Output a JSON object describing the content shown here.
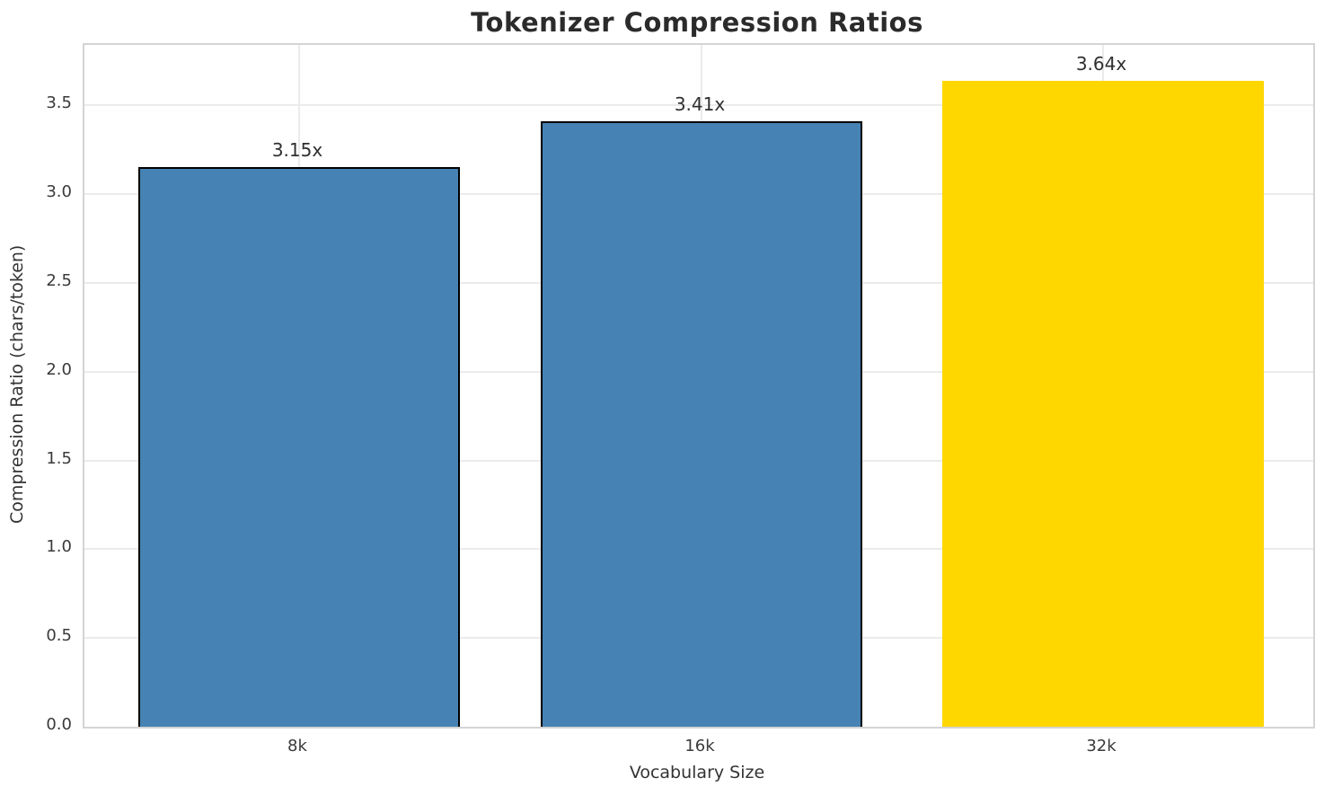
{
  "chart_data": {
    "type": "bar",
    "title": "Tokenizer Compression Ratios",
    "xlabel": "Vocabulary Size",
    "ylabel": "Compression Ratio (chars/token)",
    "categories": [
      "8k",
      "16k",
      "32k"
    ],
    "values": [
      3.15,
      3.41,
      3.64
    ],
    "bar_labels": [
      "3.15x",
      "3.41x",
      "3.64x"
    ],
    "bar_colors": [
      "#4682B4",
      "#4682B4",
      "#FFD700"
    ],
    "bar_edge_colors": [
      "#000000",
      "#000000",
      "transparent"
    ],
    "ylim": [
      0,
      3.84
    ],
    "yticks": [
      0.0,
      0.5,
      1.0,
      1.5,
      2.0,
      2.5,
      3.0,
      3.5
    ],
    "ytick_labels": [
      "0.0",
      "0.5",
      "1.0",
      "1.5",
      "2.0",
      "2.5",
      "3.0",
      "3.5"
    ],
    "grid": "both",
    "grid_color": "#ebebeb",
    "spine_color": "#d4d4d4",
    "legend": "none"
  }
}
